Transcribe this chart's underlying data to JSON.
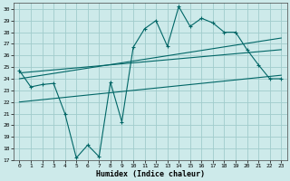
{
  "xlabel": "Humidex (Indice chaleur)",
  "background_color": "#cdeaea",
  "grid_color": "#a0cccc",
  "line_color": "#006666",
  "xlim": [
    -0.5,
    23.5
  ],
  "ylim": [
    17,
    30.5
  ],
  "yticks": [
    17,
    18,
    19,
    20,
    21,
    22,
    23,
    24,
    25,
    26,
    27,
    28,
    29,
    30
  ],
  "xticks": [
    0,
    1,
    2,
    3,
    4,
    5,
    6,
    7,
    8,
    9,
    10,
    11,
    12,
    13,
    14,
    15,
    16,
    17,
    18,
    19,
    20,
    21,
    22,
    23
  ],
  "main_x": [
    0,
    1,
    2,
    3,
    4,
    5,
    6,
    7,
    8,
    9,
    10,
    11,
    12,
    13,
    14,
    15,
    16,
    17,
    18,
    19,
    20,
    21,
    22,
    23
  ],
  "main_y": [
    24.7,
    23.3,
    23.5,
    23.6,
    21.0,
    17.2,
    18.3,
    17.3,
    23.7,
    20.3,
    26.7,
    28.3,
    29.0,
    26.8,
    30.2,
    28.5,
    29.2,
    28.8,
    28.0,
    28.0,
    26.5,
    25.2,
    24.0,
    24.0
  ],
  "trend1_x": [
    0,
    23
  ],
  "trend1_y": [
    24.0,
    27.5
  ],
  "trend2_x": [
    0,
    23
  ],
  "trend2_y": [
    24.5,
    26.5
  ],
  "trend3_x": [
    0,
    23
  ],
  "trend3_y": [
    22.0,
    24.3
  ]
}
